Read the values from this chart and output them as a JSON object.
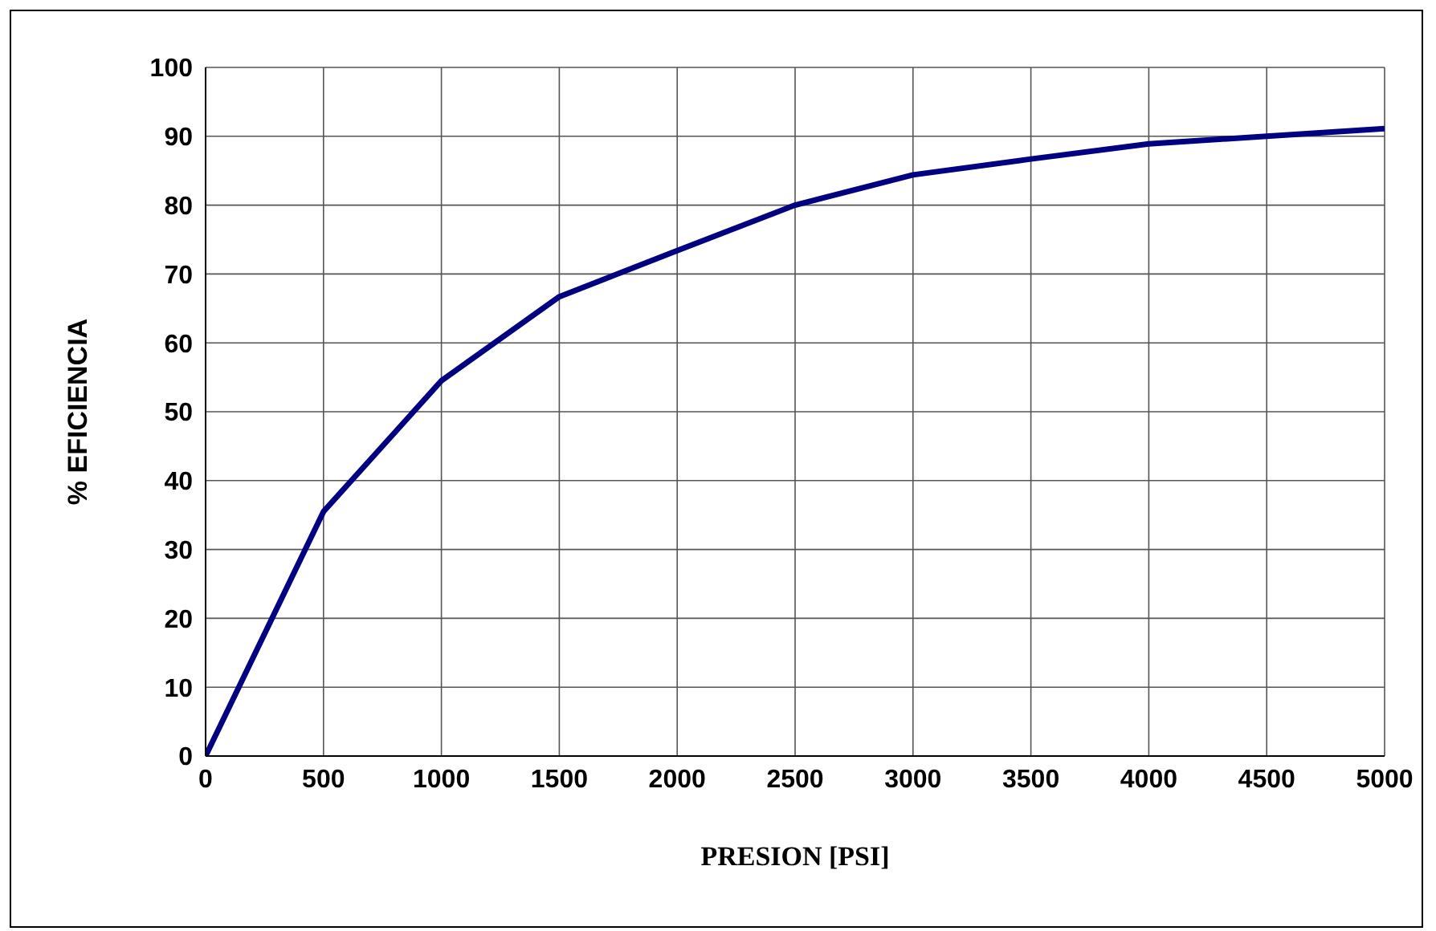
{
  "chart_data": {
    "type": "line",
    "xlabel": "PRESION  [PSI]",
    "ylabel": "%  EFICIENCIA",
    "x": [
      0,
      500,
      1000,
      1500,
      2000,
      2500,
      3000,
      3500,
      4000,
      4500,
      5000
    ],
    "series": [
      {
        "color": "#000080",
        "values": [
          0,
          35.5,
          54.5,
          66.7,
          73.4,
          80,
          84.4,
          86.7,
          88.9,
          90,
          91.1
        ]
      }
    ],
    "xlim": [
      0,
      5000
    ],
    "xticks": [
      0,
      500,
      1000,
      1500,
      2000,
      2500,
      3000,
      3500,
      4000,
      4500,
      5000
    ],
    "ylim": [
      0,
      100
    ],
    "yticks": [
      0,
      10,
      20,
      30,
      40,
      50,
      60,
      70,
      80,
      90,
      100
    ],
    "grid": true,
    "marker": "none",
    "line_style": "solid"
  }
}
